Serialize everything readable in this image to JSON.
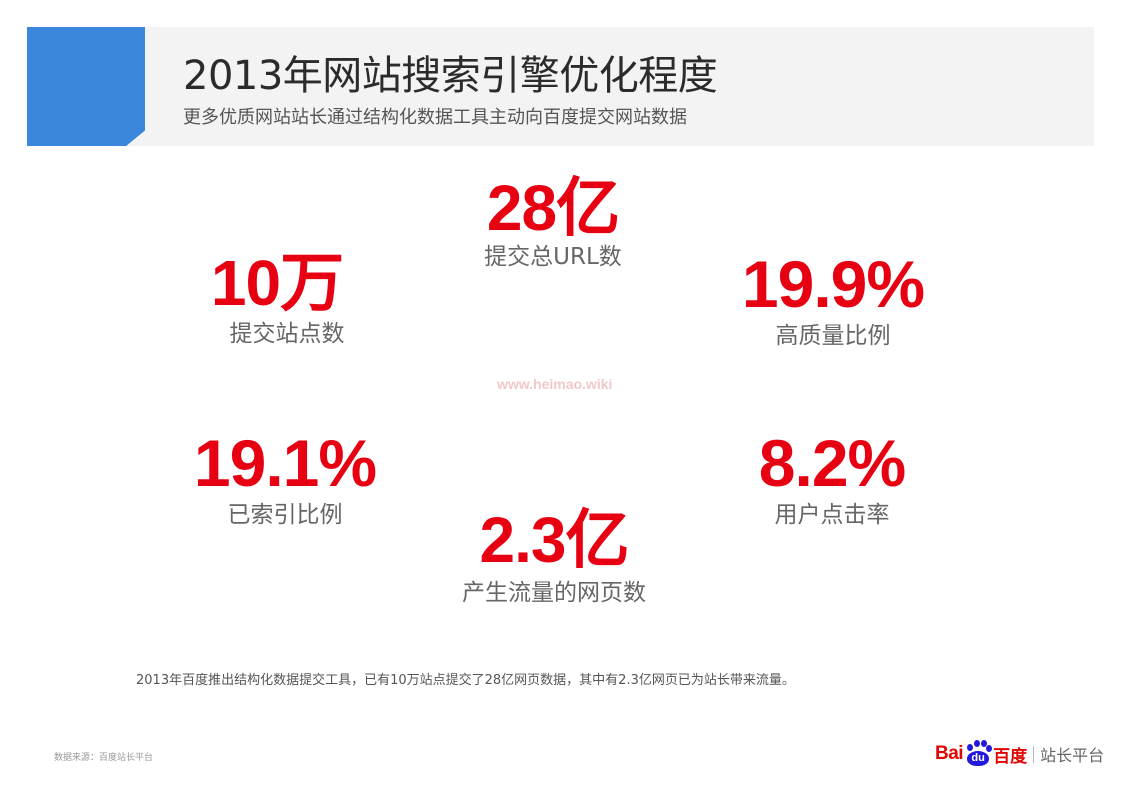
{
  "header": {
    "title": "2013年网站搜索引擎优化程度",
    "subtitle": "更多优质网站站长通过结构化数据工具主动向百度提交网站数据"
  },
  "stats": {
    "total_urls": {
      "value": "28亿",
      "label": "提交总URL数"
    },
    "sites": {
      "value": "10万",
      "label": "提交站点数"
    },
    "high_quality": {
      "value": "19.9%",
      "label": "高质量比例"
    },
    "indexed": {
      "value": "19.1%",
      "label": "已索引比例"
    },
    "ctr": {
      "value": "8.2%",
      "label": "用户点击率"
    },
    "traffic_pages": {
      "value": "2.3亿",
      "label": "产生流量的网页数"
    }
  },
  "watermark": "www.heimao.wiki",
  "summary": "2013年百度推出结构化数据提交工具，已有10万站点提交了28亿网页数据，其中有2.3亿网页已为站长带来流量。",
  "source_note": "数据来源：百度站长平台",
  "logo": {
    "bai": "Bai",
    "paw_text": "du",
    "cn": "百度",
    "platform": "站长平台"
  },
  "colors": {
    "accent_blue": "#3a87db",
    "stat_red": "#e60012",
    "header_bg": "#f3f3f3"
  }
}
